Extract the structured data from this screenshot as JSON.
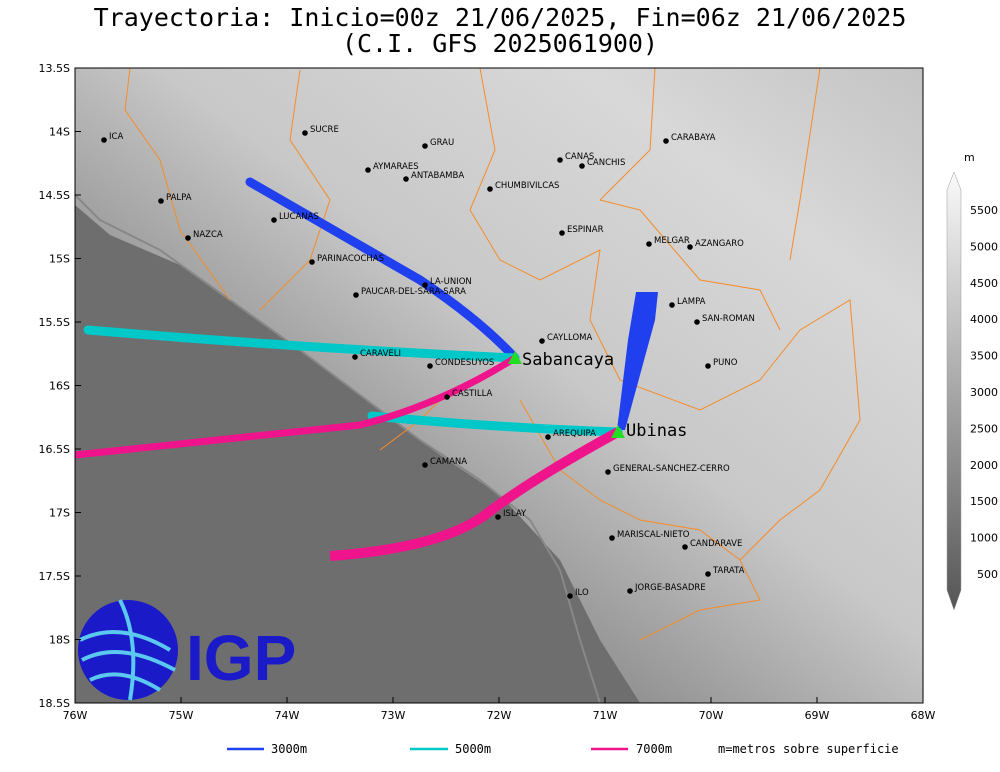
{
  "title": {
    "line1": "Trayectoria: Inicio=00z 21/06/2025, Fin=06z 21/06/2025",
    "line2": "(C.I. GFS 2025061900)"
  },
  "lat_labels": [
    "13.5S",
    "14S",
    "14.5S",
    "15S",
    "15.5S",
    "16S",
    "16.5S",
    "17S",
    "17.5S",
    "18S",
    "18.5S"
  ],
  "lon_labels": [
    "76W",
    "75W",
    "74W",
    "73W",
    "72W",
    "71W",
    "70W",
    "69W",
    "68W"
  ],
  "cities": [
    "ICA",
    "SUCRE",
    "GRAU",
    "AYMARAES",
    "ANTABAMBA",
    "CANAS",
    "CANCHIS",
    "CARABAYA",
    "CHUMBIVILCAS",
    "PALPA",
    "LUCANAS",
    "ESPINAR",
    "NAZCA",
    "MELGAR",
    "AZANGARO",
    "PARINACOCHAS",
    "LA-UNION",
    "PAUCAR-DEL-SARA-SARA",
    "LAMPA",
    "SAN-ROMAN",
    "CAYLLOMA",
    "CARAVELI",
    "CONDESUYOS",
    "PUNO",
    "CASTILLA",
    "AREQUIPA",
    "GENERAL-SANCHEZ-CERRO",
    "CAMANA",
    "ISLAY",
    "MARISCAL-NIETO",
    "CANDARAVE",
    "TARATA",
    "ILO",
    "JORGE-BASADRE"
  ],
  "volcanoes": [
    "Sabancaya",
    "Ubinas"
  ],
  "colorbar": {
    "unit": "m",
    "labels": [
      "5500",
      "5000",
      "4500",
      "4000",
      "3500",
      "3000",
      "2500",
      "2000",
      "1500",
      "1000",
      "500"
    ]
  },
  "legend": {
    "items": [
      "3000m",
      "5000m",
      "7000m"
    ],
    "note": "m=metros sobre superficie"
  },
  "logo": "IGP"
}
